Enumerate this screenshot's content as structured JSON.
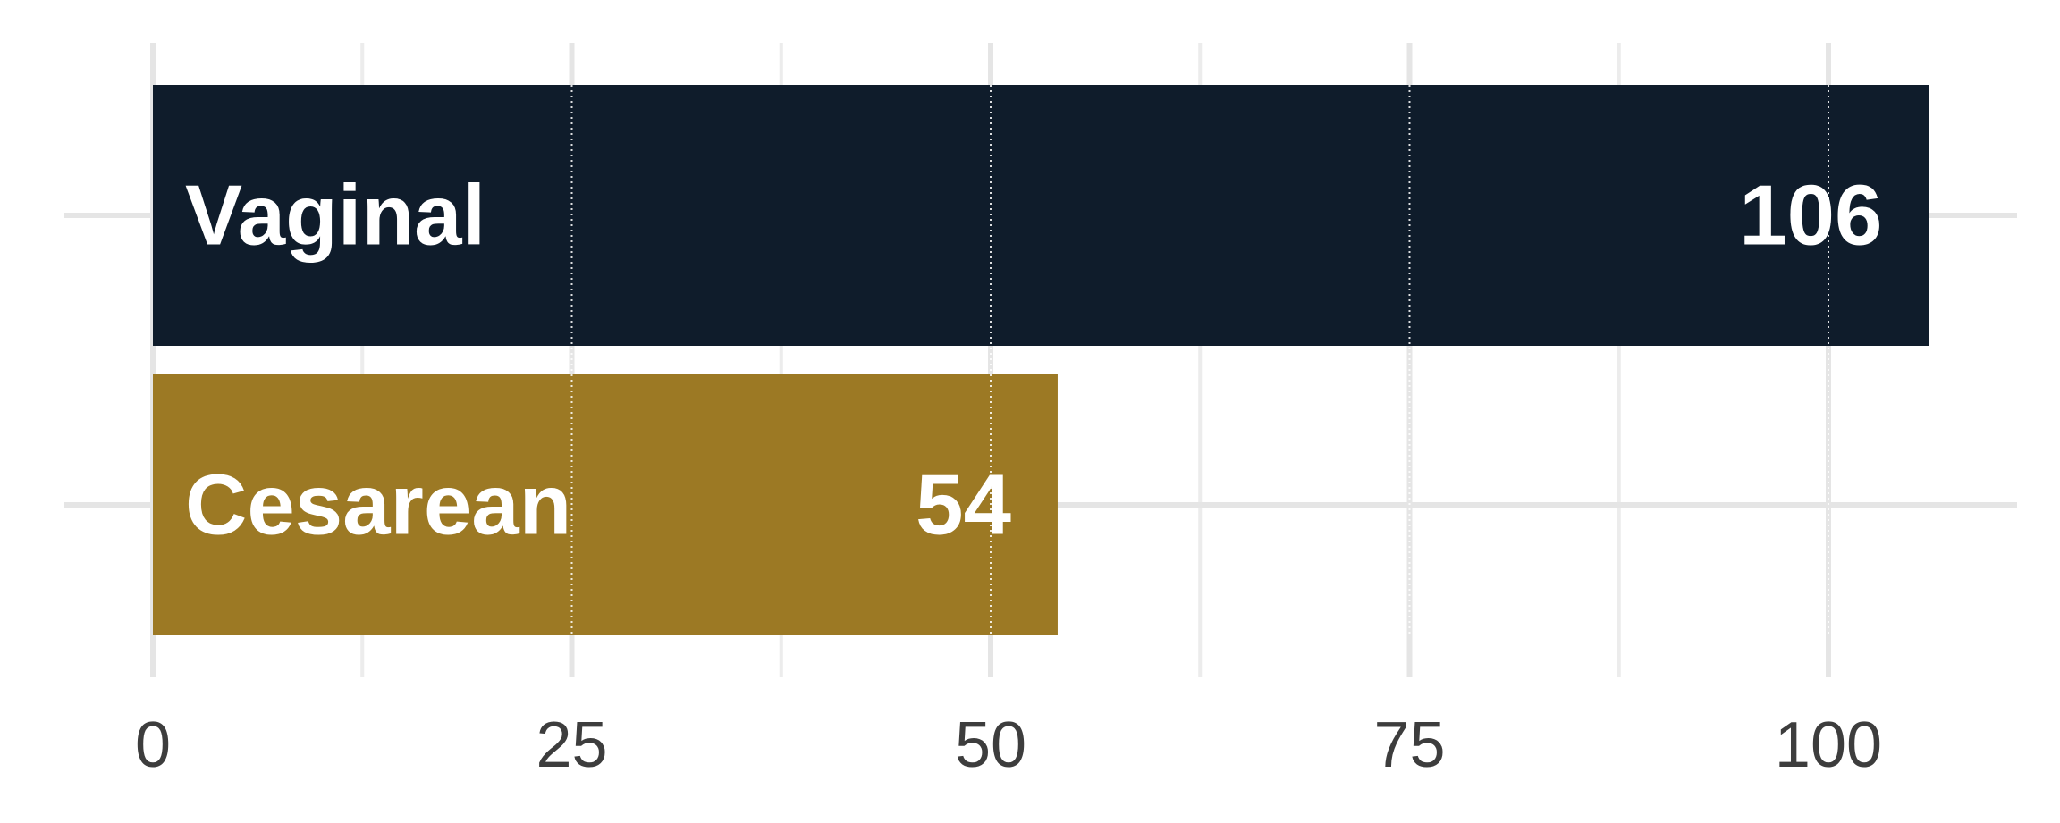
{
  "chart_data": {
    "type": "bar",
    "orientation": "horizontal",
    "categories": [
      "Vaginal",
      "Cesarean"
    ],
    "values": [
      106,
      54
    ],
    "colors": [
      "#0f1c2b",
      "#9c7924"
    ],
    "value_label_color": "#ffffff",
    "category_label_color": "#ffffff",
    "xlim": [
      0,
      110
    ],
    "x_ticks": [
      0,
      25,
      50,
      75,
      100
    ],
    "x_tick_labels": [
      "0",
      "25",
      "50",
      "75",
      "100"
    ],
    "grid": true,
    "legend": "none",
    "title": "",
    "xlabel": "",
    "ylabel": ""
  }
}
